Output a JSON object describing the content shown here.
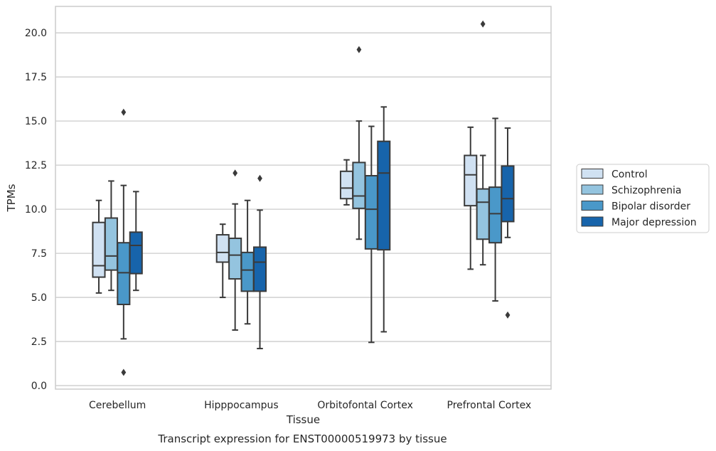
{
  "chart_data": {
    "type": "boxplot",
    "title": "",
    "caption": "Transcript expression for ENST00000519973 by tissue",
    "xlabel": "Tissue",
    "ylabel": "TPMs",
    "ylim": [
      -0.2,
      21.5
    ],
    "yticks": [
      0.0,
      2.5,
      5.0,
      7.5,
      10.0,
      12.5,
      15.0,
      17.5,
      20.0
    ],
    "ytick_labels": [
      "0.0",
      "2.5",
      "5.0",
      "7.5",
      "10.0",
      "12.5",
      "15.0",
      "17.5",
      "20.0"
    ],
    "grid": "horizontal",
    "legend_position": "right",
    "categories": [
      "Cerebellum",
      "Hipppocampus",
      "Orbitofontal Cortex",
      "Prefrontal Cortex"
    ],
    "series": [
      {
        "name": "Control",
        "color": "#d0e1f2",
        "boxes": [
          {
            "whislo": 5.25,
            "q1": 6.15,
            "med": 6.8,
            "q3": 9.25,
            "whishi": 10.5,
            "fliers": []
          },
          {
            "whislo": 5.0,
            "q1": 7.0,
            "med": 7.55,
            "q3": 8.55,
            "whishi": 9.15,
            "fliers": []
          },
          {
            "whislo": 10.25,
            "q1": 10.6,
            "med": 11.2,
            "q3": 12.15,
            "whishi": 12.8,
            "fliers": []
          },
          {
            "whislo": 6.6,
            "q1": 10.2,
            "med": 11.95,
            "q3": 13.05,
            "whishi": 14.65,
            "fliers": []
          }
        ]
      },
      {
        "name": "Schizophrenia",
        "color": "#94c4df",
        "boxes": [
          {
            "whislo": 5.4,
            "q1": 6.55,
            "med": 7.35,
            "q3": 9.5,
            "whishi": 11.6,
            "fliers": []
          },
          {
            "whislo": 3.15,
            "q1": 6.05,
            "med": 7.4,
            "q3": 8.35,
            "whishi": 10.3,
            "fliers": [
              12.05
            ]
          },
          {
            "whislo": 8.3,
            "q1": 10.05,
            "med": 10.75,
            "q3": 12.65,
            "whishi": 15.0,
            "fliers": [
              19.05
            ]
          },
          {
            "whislo": 6.85,
            "q1": 8.3,
            "med": 10.4,
            "q3": 11.15,
            "whishi": 13.05,
            "fliers": [
              20.5
            ]
          }
        ]
      },
      {
        "name": "Bipolar disorder",
        "color": "#4a98c9",
        "boxes": [
          {
            "whislo": 2.65,
            "q1": 4.6,
            "med": 6.4,
            "q3": 8.1,
            "whishi": 11.35,
            "fliers": [
              15.5,
              0.75
            ]
          },
          {
            "whislo": 3.5,
            "q1": 5.35,
            "med": 6.55,
            "q3": 7.55,
            "whishi": 10.5,
            "fliers": []
          },
          {
            "whislo": 2.45,
            "q1": 7.75,
            "med": 10.0,
            "q3": 11.9,
            "whishi": 14.7,
            "fliers": []
          },
          {
            "whislo": 4.8,
            "q1": 8.1,
            "med": 9.75,
            "q3": 11.25,
            "whishi": 15.15,
            "fliers": []
          }
        ]
      },
      {
        "name": "Major depression",
        "color": "#1764ab",
        "boxes": [
          {
            "whislo": 5.4,
            "q1": 6.35,
            "med": 7.95,
            "q3": 8.7,
            "whishi": 11.0,
            "fliers": []
          },
          {
            "whislo": 2.1,
            "q1": 5.35,
            "med": 7.0,
            "q3": 7.85,
            "whishi": 9.95,
            "fliers": [
              11.75
            ]
          },
          {
            "whislo": 3.05,
            "q1": 7.7,
            "med": 12.05,
            "q3": 13.85,
            "whishi": 15.8,
            "fliers": []
          },
          {
            "whislo": 8.4,
            "q1": 9.3,
            "med": 10.6,
            "q3": 12.45,
            "whishi": 14.6,
            "fliers": [
              4.0
            ]
          }
        ]
      }
    ]
  }
}
